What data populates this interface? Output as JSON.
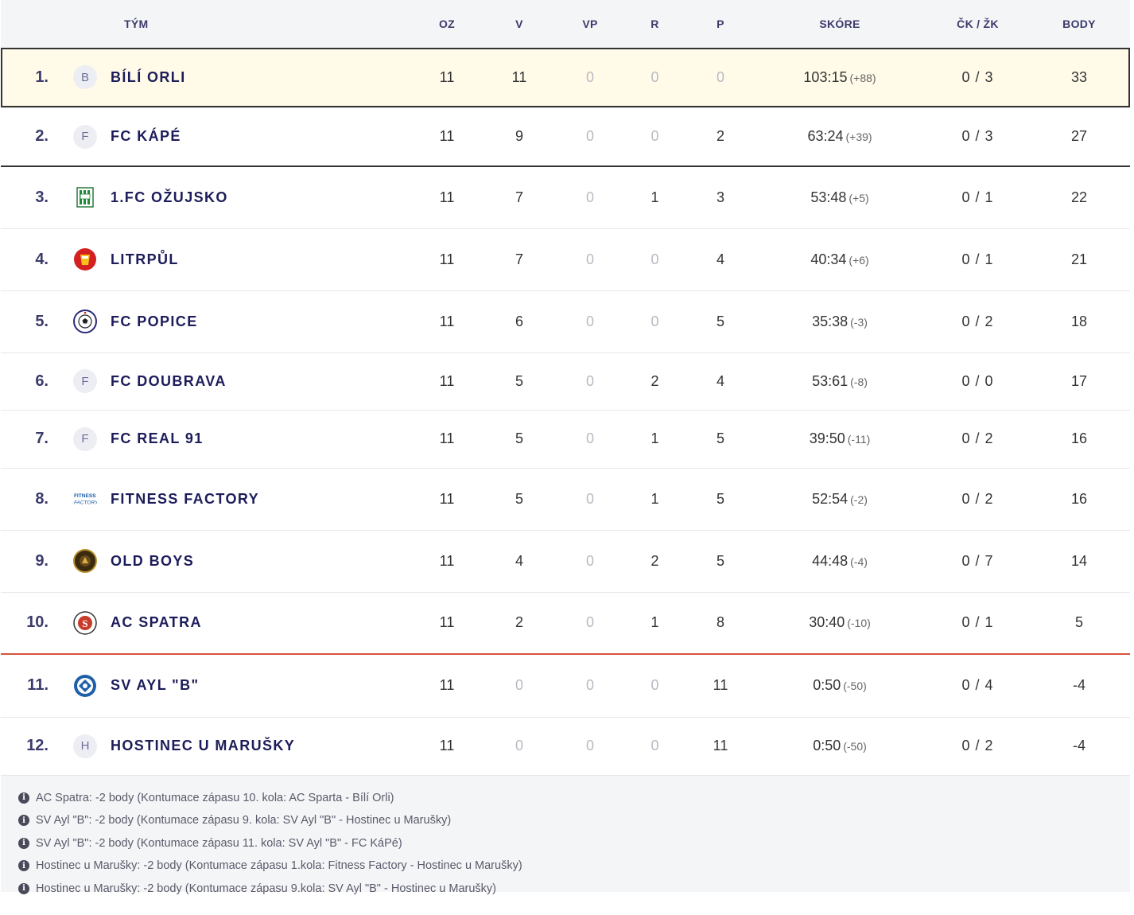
{
  "header": {
    "team": "TÝM",
    "played": "OZ",
    "wins": "V",
    "ot_wins": "VP",
    "draws": "R",
    "losses": "P",
    "score": "SKÓRE",
    "cards": "ČK / ŽK",
    "points": "BODY"
  },
  "rows": [
    {
      "rank": "1.",
      "name": "Bílí Orli",
      "logo": "B",
      "logo_type": "letter",
      "oz": "11",
      "v": "11",
      "vp": "0",
      "r": "0",
      "p": "0",
      "score": "103:15",
      "diff": "(+88)",
      "cards": "0 / 3",
      "points": "33"
    },
    {
      "rank": "2.",
      "name": "FC KáPé",
      "logo": "F",
      "logo_type": "letter",
      "oz": "11",
      "v": "9",
      "vp": "0",
      "r": "0",
      "p": "2",
      "score": "63:24",
      "diff": "(+39)",
      "cards": "0 / 3",
      "points": "27"
    },
    {
      "rank": "3.",
      "name": "1.FC Ožujsko",
      "logo": "ozujsko-logo-icon",
      "logo_type": "ozujsko",
      "oz": "11",
      "v": "7",
      "vp": "0",
      "r": "1",
      "p": "3",
      "score": "53:48",
      "diff": "(+5)",
      "cards": "0 / 1",
      "points": "22"
    },
    {
      "rank": "4.",
      "name": "Litrpůl",
      "logo": "litrpul-logo-icon",
      "logo_type": "litrpul",
      "oz": "11",
      "v": "7",
      "vp": "0",
      "r": "0",
      "p": "4",
      "score": "40:34",
      "diff": "(+6)",
      "cards": "0 / 1",
      "points": "21"
    },
    {
      "rank": "5.",
      "name": "FC Popice",
      "logo": "popice-logo-icon",
      "logo_type": "popice",
      "oz": "11",
      "v": "6",
      "vp": "0",
      "r": "0",
      "p": "5",
      "score": "35:38",
      "diff": "(-3)",
      "cards": "0 / 2",
      "points": "18"
    },
    {
      "rank": "6.",
      "name": "FC Doubrava",
      "logo": "F",
      "logo_type": "letter",
      "oz": "11",
      "v": "5",
      "vp": "0",
      "r": "2",
      "p": "4",
      "score": "53:61",
      "diff": "(-8)",
      "cards": "0 / 0",
      "points": "17"
    },
    {
      "rank": "7.",
      "name": "FC Real 91",
      "logo": "F",
      "logo_type": "letter",
      "oz": "11",
      "v": "5",
      "vp": "0",
      "r": "1",
      "p": "5",
      "score": "39:50",
      "diff": "(-11)",
      "cards": "0 / 2",
      "points": "16"
    },
    {
      "rank": "8.",
      "name": "Fitness Factory",
      "logo": "fitness-factory-logo-icon",
      "logo_type": "fitness",
      "oz": "11",
      "v": "5",
      "vp": "0",
      "r": "1",
      "p": "5",
      "score": "52:54",
      "diff": "(-2)",
      "cards": "0 / 2",
      "points": "16"
    },
    {
      "rank": "9.",
      "name": "Old Boys",
      "logo": "old-boys-logo-icon",
      "logo_type": "oldboys",
      "oz": "11",
      "v": "4",
      "vp": "0",
      "r": "2",
      "p": "5",
      "score": "44:48",
      "diff": "(-4)",
      "cards": "0 / 7",
      "points": "14"
    },
    {
      "rank": "10.",
      "name": "AC Spatra",
      "logo": "ac-spatra-logo-icon",
      "logo_type": "spatra",
      "oz": "11",
      "v": "2",
      "vp": "0",
      "r": "1",
      "p": "8",
      "score": "30:40",
      "diff": "(-10)",
      "cards": "0 / 1",
      "points": "5"
    },
    {
      "rank": "11.",
      "name": "SV Ayl \"B\"",
      "logo": "sv-ayl-logo-icon",
      "logo_type": "ayl",
      "oz": "11",
      "v": "0",
      "vp": "0",
      "r": "0",
      "p": "11",
      "score": "0:50",
      "diff": "(-50)",
      "cards": "0 / 4",
      "points": "-4"
    },
    {
      "rank": "12.",
      "name": "Hostinec u Marušky",
      "logo": "H",
      "logo_type": "letter",
      "oz": "11",
      "v": "0",
      "vp": "0",
      "r": "0",
      "p": "11",
      "score": "0:50",
      "diff": "(-50)",
      "cards": "0 / 2",
      "points": "-4"
    }
  ],
  "notes": [
    "AC Spatra: -2 body (Kontumace zápasu 10. kola: AC Sparta - Bílí Orli)",
    "SV Ayl \"B\": -2 body (Kontumace zápasu 9. kola: SV Ayl \"B\" - Hostinec u Marušky)",
    "SV Ayl \"B\": -2 body (Kontumace zápasu 11. kola: SV Ayl \"B\" - FC KáPé)",
    "Hostinec u Marušky: -2 body (Kontumace zápasu 1.kola: Fitness Factory - Hostinec u Marušky)",
    "Hostinec u Marušky: -2 body (Kontumace zápasu 9.kola: SV Ayl \"B\" - Hostinec u Marušky)"
  ],
  "colors": {
    "team_text": "#1c1c5a",
    "highlight_bg": "#fffbe8",
    "relegation_line": "#d9533b",
    "promotion_line": "#333333"
  }
}
